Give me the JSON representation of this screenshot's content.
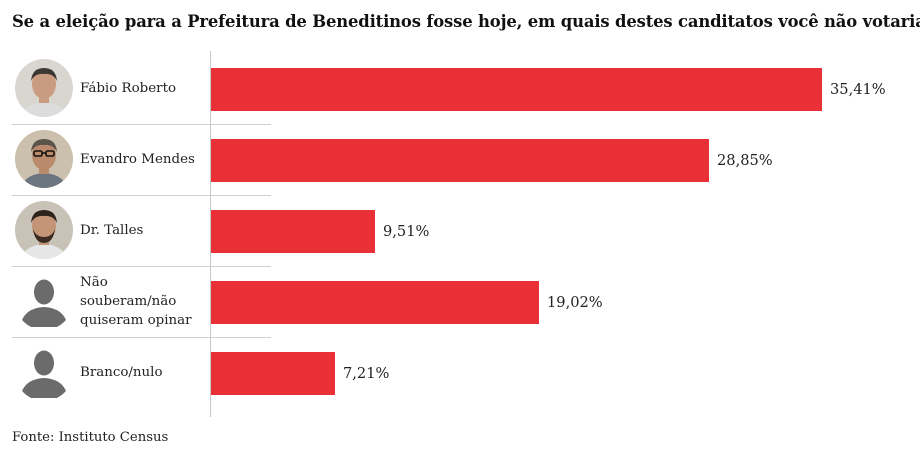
{
  "title": "Se a eleição para a Prefeitura de Beneditinos fosse hoje, em quais destes canditatos você não votaria?",
  "source": "Fonte: Instituto Census",
  "colors": {
    "bar": "#ea3037",
    "text": "#222222",
    "axis": "#c7c7c7",
    "divider": "#cfcfcf",
    "placeholder_avatar": "#6b6b6b"
  },
  "chart_data": {
    "type": "bar",
    "orientation": "horizontal",
    "categories": [
      "Fábio Roberto",
      "Evandro Mendes",
      "Dr. Talles",
      "Não souberam/não quiseram opinar",
      "Branco/nulo"
    ],
    "values": [
      35.41,
      28.85,
      9.51,
      19.02,
      7.21
    ],
    "value_labels": [
      "35,41%",
      "28,85%",
      "9,51%",
      "19,02%",
      "7,21%"
    ],
    "unit": "%",
    "xlim": [
      0,
      35.41
    ],
    "grid": false,
    "legend": "none",
    "avatars": [
      "photo",
      "photo",
      "photo",
      "placeholder-person-icon",
      "placeholder-person-icon"
    ]
  }
}
